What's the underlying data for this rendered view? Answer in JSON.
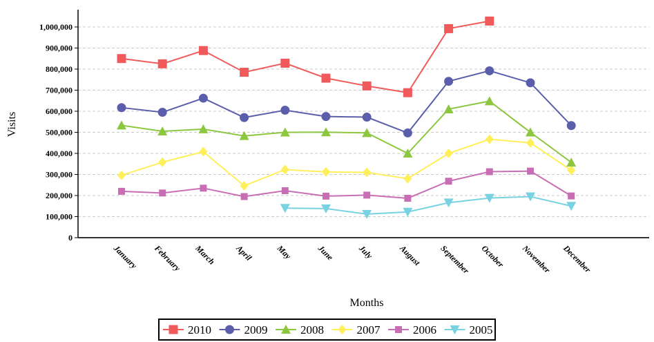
{
  "chart_data": {
    "type": "line",
    "xlabel": "Months",
    "ylabel": "Visits",
    "ylim": [
      0,
      1000000
    ],
    "yticks": [
      0,
      100000,
      200000,
      300000,
      400000,
      500000,
      600000,
      700000,
      800000,
      900000,
      1000000
    ],
    "ytick_labels": [
      "0",
      "100,000",
      "200,000",
      "300,000",
      "400,000",
      "500,000",
      "600,000",
      "700,000",
      "800,000",
      "900,000",
      "1,000,000"
    ],
    "grid": "horizontal-dashed",
    "legend": "bottom",
    "categories": [
      "January",
      "February",
      "March",
      "April",
      "May",
      "June",
      "July",
      "August",
      "September",
      "October",
      "November",
      "December"
    ],
    "series": [
      {
        "name": "2010",
        "color": "#f05a5a",
        "marker": "square",
        "values": [
          850000,
          825000,
          888000,
          785000,
          828000,
          757000,
          720000,
          688000,
          992000,
          1028000,
          null,
          null
        ]
      },
      {
        "name": "2009",
        "color": "#5b5fab",
        "marker": "circle",
        "values": [
          617000,
          595000,
          662000,
          570000,
          605000,
          575000,
          572000,
          497000,
          742000,
          792000,
          735000,
          532000
        ]
      },
      {
        "name": "2008",
        "color": "#8dc63f",
        "marker": "triangle-up",
        "values": [
          533000,
          505000,
          515000,
          483000,
          500000,
          501000,
          497000,
          400000,
          610000,
          648000,
          500000,
          357000
        ]
      },
      {
        "name": "2007",
        "color": "#ffef5a",
        "marker": "diamond",
        "values": [
          296000,
          358000,
          408000,
          246000,
          323000,
          312000,
          310000,
          280000,
          400000,
          467000,
          450000,
          320000
        ]
      },
      {
        "name": "2006",
        "color": "#c86eb4",
        "marker": "small-square",
        "values": [
          220000,
          212000,
          235000,
          195000,
          223000,
          197000,
          202000,
          187000,
          268000,
          313000,
          316000,
          198000
        ]
      },
      {
        "name": "2005",
        "color": "#78d2e1",
        "marker": "triangle-down",
        "values": [
          null,
          null,
          null,
          null,
          140000,
          138000,
          112000,
          122000,
          166000,
          188000,
          195000,
          150000
        ]
      }
    ]
  }
}
